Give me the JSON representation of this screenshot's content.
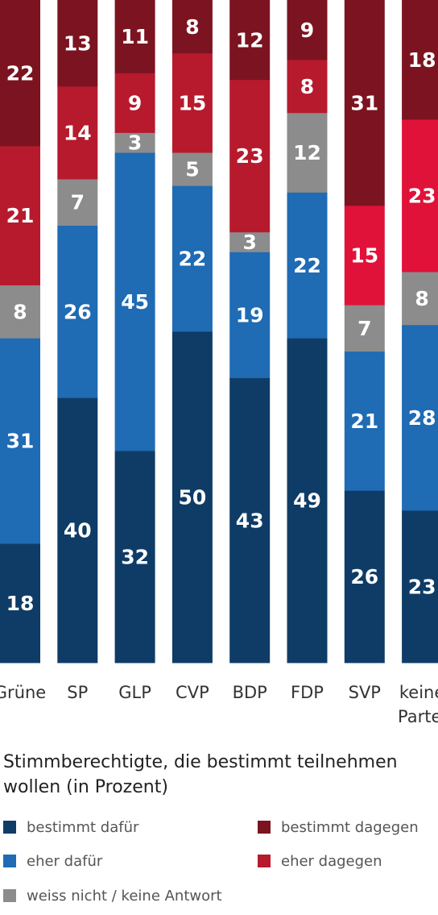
{
  "chart_data": {
    "type": "bar",
    "stacked": true,
    "orientation": "vertical",
    "normalized_to": 100,
    "categories": [
      "Grüne",
      "SP",
      "GLP",
      "CVP",
      "BDP",
      "FDP",
      "SVP",
      "keine Partei"
    ],
    "series": [
      {
        "name": "bestimmt dafür",
        "color": "#0f3c66",
        "values": [
          18,
          40,
          32,
          50,
          43,
          49,
          26,
          23
        ]
      },
      {
        "name": "eher dafür",
        "color": "#1f6bb4",
        "values": [
          31,
          26,
          45,
          22,
          19,
          22,
          21,
          28
        ]
      },
      {
        "name": "weiss nicht / keine Antwort",
        "color": "#8c8c8c",
        "values": [
          8,
          7,
          3,
          5,
          3,
          12,
          7,
          8
        ]
      },
      {
        "name": "eher dagegen",
        "color": "#b71a2d",
        "values": [
          21,
          14,
          9,
          15,
          23,
          8,
          15,
          23
        ]
      },
      {
        "name": "bestimmt dagegen",
        "color": "#7b1420",
        "values": [
          22,
          13,
          11,
          8,
          12,
          9,
          31,
          18
        ]
      }
    ],
    "highlight_color_eher_dagegen_last": "#e0123a",
    "caption": "Stimmberechtigte, die bestimmt teilnehmen wollen (in Prozent)",
    "legend_position": "bottom"
  }
}
